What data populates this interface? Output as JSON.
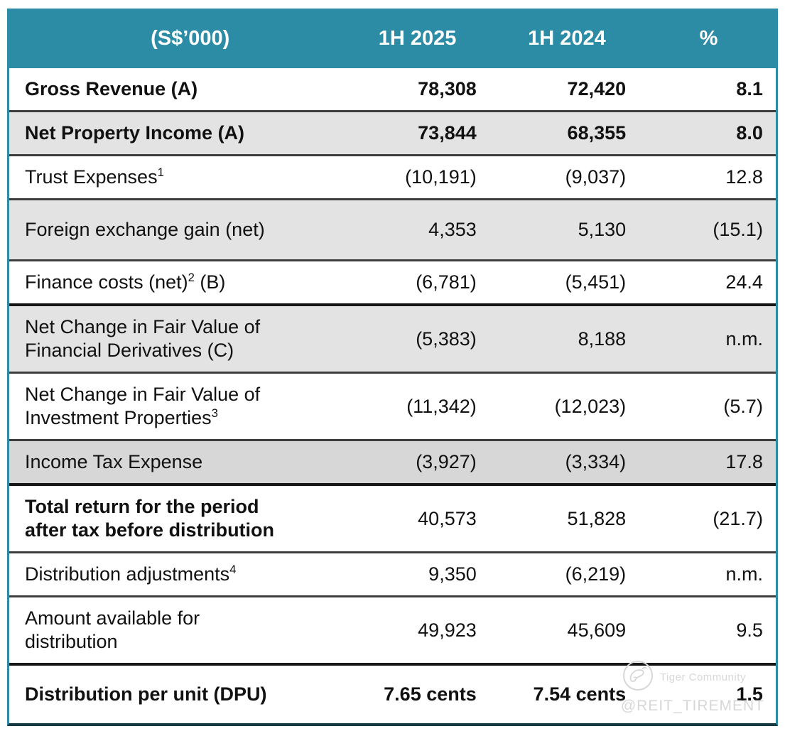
{
  "table": {
    "header": {
      "currency": "(S$’000)",
      "period1": "1H 2025",
      "period2": "1H 2024",
      "percent": "%"
    },
    "rows": [
      {
        "label_parts": [
          {
            "t": "text",
            "v": "Gross Revenue (A)"
          }
        ],
        "v2025": "78,308",
        "v2024": "72,420",
        "pct": "8.1",
        "bold_label": true,
        "bold_values": true,
        "bg": "white",
        "sep": "normal",
        "size": "s"
      },
      {
        "label_parts": [
          {
            "t": "text",
            "v": "Net Property Income (A)"
          }
        ],
        "v2025": "73,844",
        "v2024": "68,355",
        "pct": "8.0",
        "bold_label": true,
        "bold_values": true,
        "bg": "gray",
        "sep": "normal",
        "size": "s"
      },
      {
        "label_parts": [
          {
            "t": "text",
            "v": "Trust Expenses"
          },
          {
            "t": "sup",
            "v": "1"
          }
        ],
        "v2025": "(10,191)",
        "v2024": "(9,037)",
        "pct": "12.8",
        "bold_label": false,
        "bold_values": false,
        "bg": "white",
        "sep": "normal",
        "size": "s"
      },
      {
        "label_parts": [
          {
            "t": "text",
            "v": "Foreign exchange gain (net)"
          }
        ],
        "v2025": "4,353",
        "v2024": "5,130",
        "pct": "(15.1)",
        "bold_label": false,
        "bold_values": false,
        "bg": "gray",
        "sep": "normal",
        "size": "tall"
      },
      {
        "label_parts": [
          {
            "t": "text",
            "v": "Finance costs (net)"
          },
          {
            "t": "sup",
            "v": "2"
          },
          {
            "t": "text",
            "v": " (B)"
          }
        ],
        "v2025": "(6,781)",
        "v2024": "(5,451)",
        "pct": "24.4",
        "bold_label": false,
        "bold_values": false,
        "bg": "white",
        "sep": "normal",
        "size": "s"
      },
      {
        "label_parts": [
          {
            "t": "text",
            "v": "Net Change in Fair Value of"
          },
          {
            "t": "br"
          },
          {
            "t": "text",
            "v": "Financial Derivatives (C)"
          }
        ],
        "v2025": "(5,383)",
        "v2024": "8,188",
        "pct": "n.m.",
        "bold_label": false,
        "bold_values": false,
        "bg": "gray",
        "sep": "thick",
        "size": "s"
      },
      {
        "label_parts": [
          {
            "t": "text",
            "v": "Net Change in Fair Value of"
          },
          {
            "t": "br"
          },
          {
            "t": "text",
            "v": "Investment Properties"
          },
          {
            "t": "sup",
            "v": "3"
          }
        ],
        "v2025": "(11,342)",
        "v2024": "(12,023)",
        "pct": "(5.7)",
        "bold_label": false,
        "bold_values": false,
        "bg": "white",
        "sep": "normal",
        "size": "s"
      },
      {
        "label_parts": [
          {
            "t": "text",
            "v": "Income Tax Expense"
          }
        ],
        "v2025": "(3,927)",
        "v2024": "(3,334)",
        "pct": "17.8",
        "bold_label": false,
        "bold_values": false,
        "bg": "darkgray",
        "sep": "normal",
        "size": "s"
      },
      {
        "label_parts": [
          {
            "t": "text",
            "v": "Total return for the period"
          },
          {
            "t": "br"
          },
          {
            "t": "text",
            "v": "after tax before distribution"
          }
        ],
        "v2025": "40,573",
        "v2024": "51,828",
        "pct": "(21.7)",
        "bold_label": true,
        "bold_values": false,
        "bg": "white",
        "sep": "thick",
        "size": "s"
      },
      {
        "label_parts": [
          {
            "t": "text",
            "v": "Distribution adjustments"
          },
          {
            "t": "sup",
            "v": "4"
          }
        ],
        "v2025": "9,350",
        "v2024": "(6,219)",
        "pct": "n.m.",
        "bold_label": false,
        "bold_values": false,
        "bg": "white",
        "sep": "normal",
        "size": "s"
      },
      {
        "label_parts": [
          {
            "t": "text",
            "v": "Amount available for"
          },
          {
            "t": "br"
          },
          {
            "t": "text",
            "v": "distribution"
          }
        ],
        "v2025": "49,923",
        "v2024": "45,609",
        "pct": "9.5",
        "bold_label": false,
        "bold_values": false,
        "bg": "white",
        "sep": "normal",
        "size": "s"
      },
      {
        "label_parts": [
          {
            "t": "text",
            "v": "Distribution per unit (DPU)"
          }
        ],
        "v2025": "7.65 cents",
        "v2024": "7.54 cents",
        "pct": "1.5",
        "bold_label": true,
        "bold_values": true,
        "bg": "white",
        "sep": "thick",
        "size": "tall-x"
      }
    ]
  },
  "watermark": {
    "brand": "Tiger Community",
    "handle": "@REIT_TIREMENT",
    "logo": "tiger-community-logo-icon"
  },
  "colors": {
    "header_teal": "#2c8ca6",
    "row_gray": "#e3e3e3",
    "row_darkgray": "#d7d7d7",
    "divider": "#3d3d3d",
    "divider_thick": "#161616",
    "bottom_border": "#173a42",
    "watermark_gray": "#d7d7d7"
  },
  "chart_data": {
    "type": "table",
    "title": "(S$’000)",
    "columns": [
      "(S$’000)",
      "1H 2025",
      "1H 2024",
      "%"
    ],
    "rows": [
      [
        "Gross Revenue (A)",
        "78,308",
        "72,420",
        "8.1"
      ],
      [
        "Net Property Income (A)",
        "73,844",
        "68,355",
        "8.0"
      ],
      [
        "Trust Expenses¹",
        "(10,191)",
        "(9,037)",
        "12.8"
      ],
      [
        "Foreign exchange gain (net)",
        "4,353",
        "5,130",
        "(15.1)"
      ],
      [
        "Finance costs (net)² (B)",
        "(6,781)",
        "(5,451)",
        "24.4"
      ],
      [
        "Net Change in Fair Value of Financial Derivatives (C)",
        "(5,383)",
        "8,188",
        "n.m."
      ],
      [
        "Net Change in Fair Value of Investment Properties³",
        "(11,342)",
        "(12,023)",
        "(5.7)"
      ],
      [
        "Income Tax Expense",
        "(3,927)",
        "(3,334)",
        "17.8"
      ],
      [
        "Total return for the period after tax before distribution",
        "40,573",
        "51,828",
        "(21.7)"
      ],
      [
        "Distribution adjustments⁴",
        "9,350",
        "(6,219)",
        "n.m."
      ],
      [
        "Amount available for distribution",
        "49,923",
        "45,609",
        "9.5"
      ],
      [
        "Distribution per unit (DPU)",
        "7.65 cents",
        "7.54 cents",
        "1.5"
      ]
    ]
  }
}
